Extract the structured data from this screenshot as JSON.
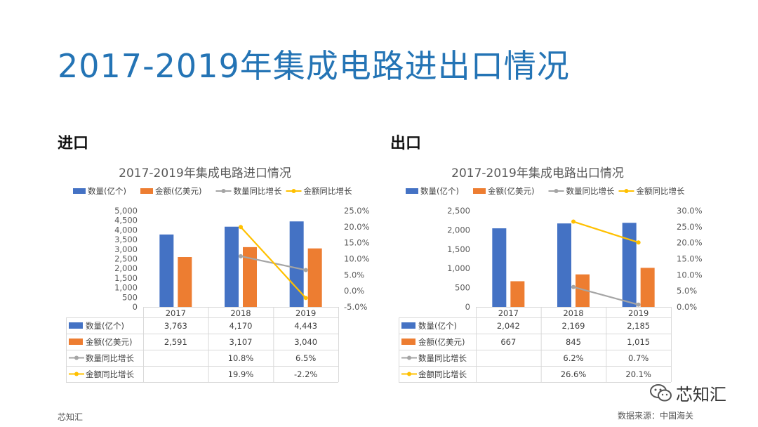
{
  "page": {
    "title": "2017-2019年集成电路进出口情况",
    "import_label": "进口",
    "export_label": "出口",
    "footer_left": "芯知汇",
    "footer_right": "数据来源：中国海关",
    "watermark_text": "芯知汇",
    "watermark_icon": "wechat-icon"
  },
  "chart_data": [
    {
      "type": "bar",
      "title": "2017-2019年集成电路进口情况",
      "categories": [
        "2017",
        "2018",
        "2019"
      ],
      "series": [
        {
          "name": "数量(亿个)",
          "kind": "bar",
          "axis": "left",
          "color": "#4472c4",
          "values": [
            3763,
            4170,
            4443
          ],
          "labels": [
            "3,763",
            "4,170",
            "4,443"
          ]
        },
        {
          "name": "金额(亿美元)",
          "kind": "bar",
          "axis": "left",
          "color": "#ed7d31",
          "values": [
            2591,
            3107,
            3040
          ],
          "labels": [
            "2,591",
            "3,107",
            "3,040"
          ]
        },
        {
          "name": "数量同比增长",
          "kind": "line",
          "axis": "right",
          "color": "#a5a5a5",
          "values": [
            null,
            10.8,
            6.5
          ],
          "labels": [
            "",
            "10.8%",
            "6.5%"
          ]
        },
        {
          "name": "金额同比增长",
          "kind": "line",
          "axis": "right",
          "color": "#ffc000",
          "values": [
            null,
            19.9,
            -2.2
          ],
          "labels": [
            "",
            "19.9%",
            "-2.2%"
          ]
        }
      ],
      "y_left": {
        "min": 0,
        "max": 5000,
        "ticks": [
          "0",
          "500",
          "1,000",
          "1,500",
          "2,000",
          "2,500",
          "3,000",
          "3,500",
          "4,000",
          "4,500",
          "5,000"
        ]
      },
      "y_right": {
        "min": -5,
        "max": 25,
        "ticks": [
          "-5.0%",
          "0.0%",
          "5.0%",
          "10.0%",
          "15.0%",
          "20.0%",
          "25.0%"
        ]
      },
      "legend": "top",
      "data_table": true
    },
    {
      "type": "bar",
      "title": "2017-2019年集成电路出口情况",
      "categories": [
        "2017",
        "2018",
        "2019"
      ],
      "series": [
        {
          "name": "数量(亿个)",
          "kind": "bar",
          "axis": "left",
          "color": "#4472c4",
          "values": [
            2042,
            2169,
            2185
          ],
          "labels": [
            "2,042",
            "2,169",
            "2,185"
          ]
        },
        {
          "name": "金额(亿美元)",
          "kind": "bar",
          "axis": "left",
          "color": "#ed7d31",
          "values": [
            667,
            845,
            1015
          ],
          "labels": [
            "667",
            "845",
            "1,015"
          ]
        },
        {
          "name": "数量同比增长",
          "kind": "line",
          "axis": "right",
          "color": "#a5a5a5",
          "values": [
            null,
            6.2,
            0.7
          ],
          "labels": [
            "",
            "6.2%",
            "0.7%"
          ]
        },
        {
          "name": "金额同比增长",
          "kind": "line",
          "axis": "right",
          "color": "#ffc000",
          "values": [
            null,
            26.6,
            20.1
          ],
          "labels": [
            "",
            "26.6%",
            "20.1%"
          ]
        }
      ],
      "y_left": {
        "min": 0,
        "max": 2500,
        "ticks": [
          "0",
          "500",
          "1,000",
          "1,500",
          "2,000",
          "2,500"
        ]
      },
      "y_right": {
        "min": 0,
        "max": 30,
        "ticks": [
          "0.0%",
          "5.0%",
          "10.0%",
          "15.0%",
          "20.0%",
          "25.0%",
          "30.0%"
        ]
      },
      "legend": "top",
      "data_table": true
    }
  ]
}
